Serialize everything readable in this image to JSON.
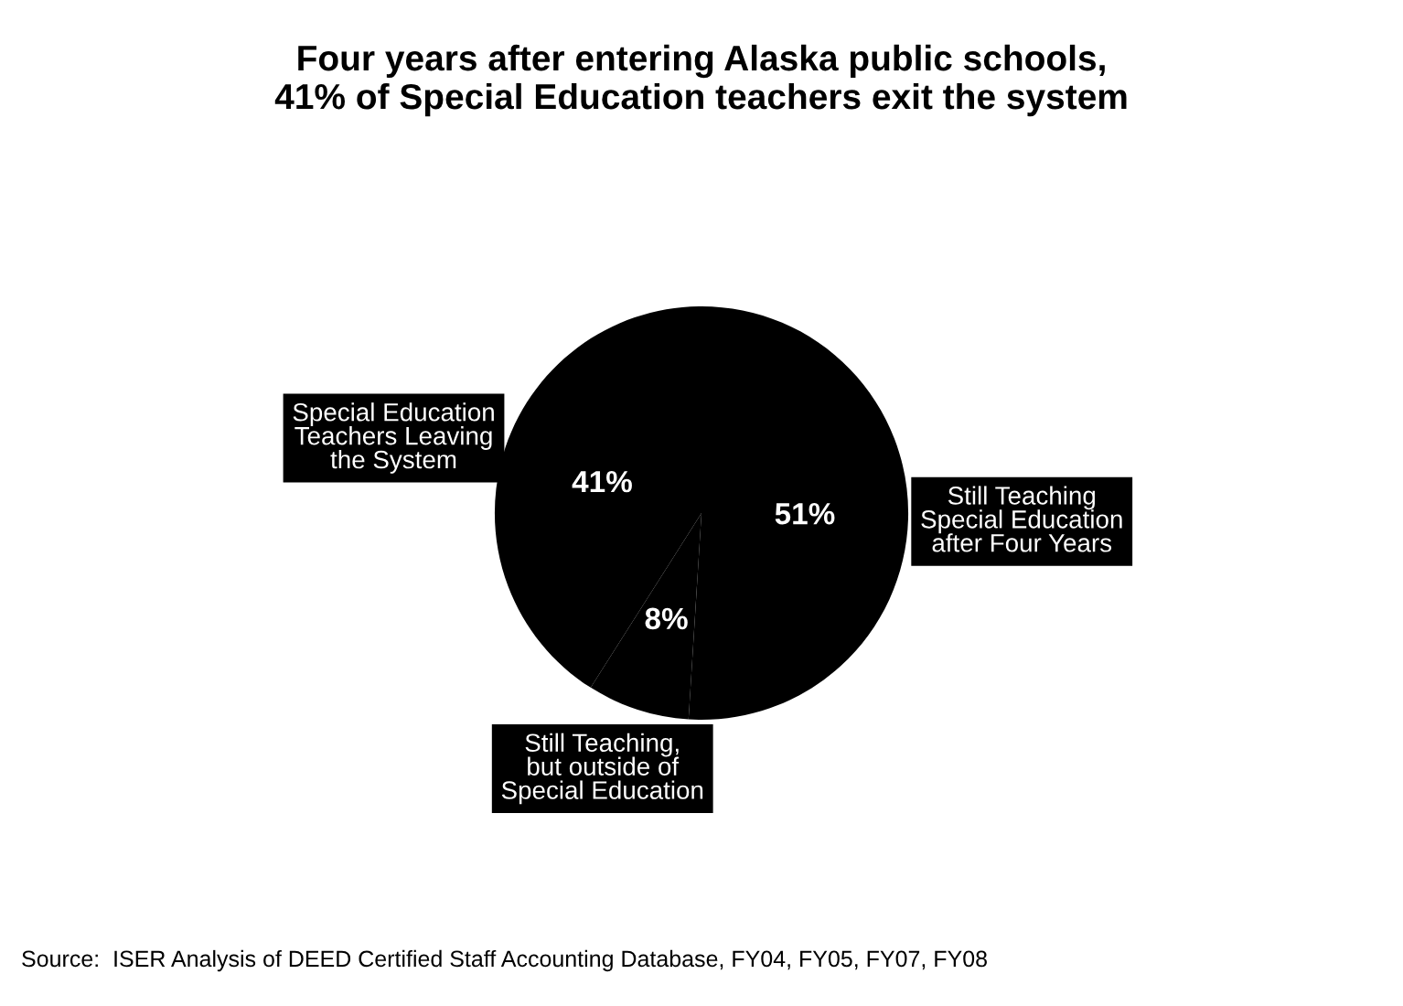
{
  "chart_data": {
    "type": "pie",
    "title": "Four years after entering Alaska public schools,\n41% of Special Education teachers exit the system",
    "categories": [
      "Special Education\nTeachers Leaving\nthe System",
      "Still Teaching,\nbut outside of\nSpecial Education",
      "Still Teaching\nSpecial Education\nafter Four Years"
    ],
    "values": [
      41,
      8,
      51
    ],
    "value_labels": [
      "41%",
      "8%",
      "51%"
    ],
    "colors": [
      "#000000",
      "#000000",
      "#000000"
    ],
    "annotations": [
      "Source:  ISER Analysis of DEED Certified Staff Accounting Database, FY04, FY05, FY07, FY08"
    ]
  }
}
